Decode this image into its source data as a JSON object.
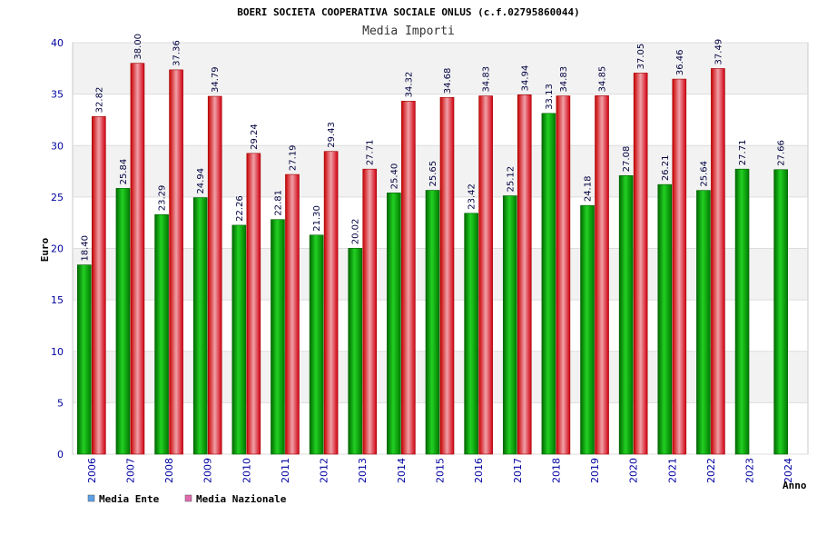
{
  "chart_data": {
    "type": "bar",
    "title": "BOERI SOCIETA COOPERATIVA SOCIALE ONLUS (c.f.02795860044)",
    "subtitle": "Media Importi",
    "ylabel": "Euro",
    "xlabel": "Anno",
    "ylim": [
      0,
      40
    ],
    "yticks": [
      0,
      5,
      10,
      15,
      20,
      25,
      30,
      35,
      40
    ],
    "grid": true,
    "legend_position": "bottom-left",
    "categories": [
      "2006",
      "2007",
      "2008",
      "2009",
      "2010",
      "2011",
      "2012",
      "2013",
      "2014",
      "2015",
      "2016",
      "2017",
      "2018",
      "2019",
      "2020",
      "2021",
      "2022",
      "2023",
      "2024"
    ],
    "series": [
      {
        "name": "Media Ente",
        "color": "#00a000",
        "legend_color": "#5aa0e6",
        "values": [
          18.4,
          25.84,
          23.29,
          24.94,
          22.26,
          22.81,
          21.3,
          20.02,
          25.4,
          25.65,
          23.42,
          25.12,
          33.13,
          24.18,
          27.08,
          26.21,
          25.64,
          27.71,
          27.66
        ],
        "labels": [
          "18.40",
          "25.84",
          "23.29",
          "24.94",
          "22.26",
          "22.81",
          "21.30",
          "20.02",
          "25.40",
          "25.65",
          "23.42",
          "25.12",
          "33.13",
          "24.18",
          "27.08",
          "26.21",
          "25.64",
          "27.71",
          "27.66"
        ]
      },
      {
        "name": "Media Nazionale",
        "color": "#e01010",
        "legend_color": "#e06ab0",
        "values": [
          32.82,
          38.0,
          37.36,
          34.79,
          29.24,
          27.19,
          29.43,
          27.71,
          34.32,
          34.68,
          34.83,
          34.94,
          34.83,
          34.85,
          37.05,
          36.46,
          37.49,
          null,
          null
        ],
        "labels": [
          "32.82",
          "38.00",
          "37.36",
          "34.79",
          "29.24",
          "27.19",
          "29.43",
          "27.71",
          "34.32",
          "34.68",
          "34.83",
          "34.94",
          "34.83",
          "34.85",
          "37.05",
          "36.46",
          "37.49",
          "",
          ""
        ]
      }
    ]
  }
}
